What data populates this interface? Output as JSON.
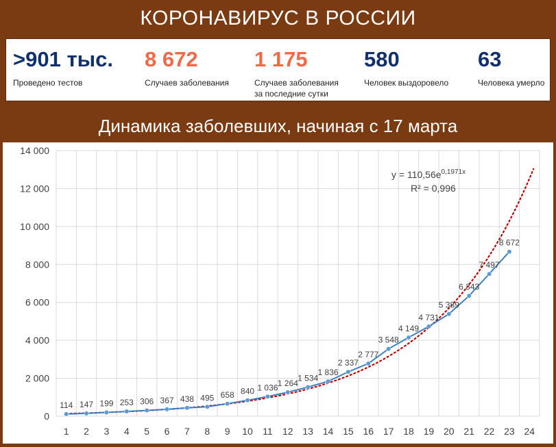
{
  "header": {
    "title": "КОРОНАВИРУС В РОССИИ"
  },
  "stats": [
    {
      "value": ">901 тыс.",
      "label": "Проведено тестов",
      "color": "#12306b"
    },
    {
      "value": "8 672",
      "label": "Случаев заболевания",
      "color": "#ef6a47"
    },
    {
      "value": "1 175",
      "label": "Случаев заболевания\nза последние сутки",
      "color": "#ef6a47"
    },
    {
      "value": "580",
      "label": "Человек выздоровело",
      "color": "#12306b"
    },
    {
      "value": "63",
      "label": "Человека умерло",
      "color": "#12306b"
    }
  ],
  "chart_title": "Динамика заболевших, начиная с 17 марта",
  "chart_data": {
    "type": "line",
    "title": "Динамика заболевших, начиная с 17 марта",
    "xlabel": "",
    "ylabel": "",
    "x": [
      1,
      2,
      3,
      4,
      5,
      6,
      7,
      8,
      9,
      10,
      11,
      12,
      13,
      14,
      15,
      16,
      17,
      18,
      19,
      20,
      21,
      22,
      23
    ],
    "x_ticks": [
      1,
      2,
      3,
      4,
      5,
      6,
      7,
      8,
      9,
      10,
      11,
      12,
      13,
      14,
      15,
      16,
      17,
      18,
      19,
      20,
      21,
      22,
      23,
      24
    ],
    "y_ticks": [
      0,
      2000,
      4000,
      6000,
      8000,
      10000,
      12000,
      14000
    ],
    "y_tick_labels": [
      "0",
      "2 000",
      "4 000",
      "6 000",
      "8 000",
      "10 000",
      "12 000",
      "14 000"
    ],
    "xlim": [
      1,
      24
    ],
    "ylim": [
      0,
      14000
    ],
    "grid": true,
    "series": [
      {
        "values": [
          114,
          147,
          199,
          253,
          306,
          367,
          438,
          495,
          658,
          840,
          1036,
          1264,
          1534,
          1836,
          2337,
          2777,
          3548,
          4149,
          4731,
          5389,
          6343,
          7497,
          8672
        ],
        "labels": [
          "114",
          "147",
          "199",
          "253",
          "306",
          "367",
          "438",
          "495",
          "658",
          "840",
          "1 036",
          "1 264",
          "1 534",
          "1 836",
          "2 337",
          "2 777",
          "3 548",
          "4 149",
          "4 731",
          "5 389",
          "6 343",
          "7 497",
          "8 672"
        ],
        "color": "#3f7fbf"
      }
    ],
    "trendline": {
      "type": "exponential",
      "a": 110.56,
      "b": 0.1971,
      "x_range": [
        1,
        24.2
      ],
      "color": "#c00000",
      "equation_text": "y = 110,56e",
      "equation_exponent": "0,1971x",
      "r2_text": "R² = 0,996"
    }
  }
}
